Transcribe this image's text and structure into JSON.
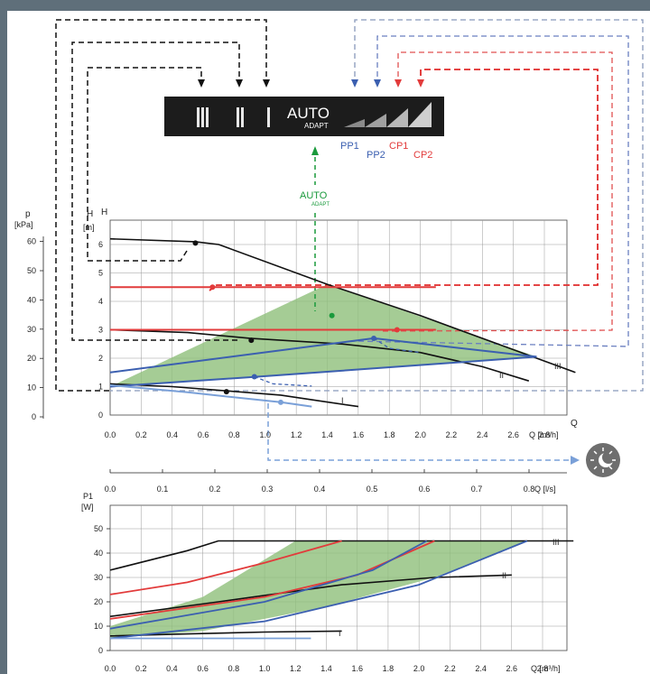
{
  "control_panel": {
    "bars": [
      "III",
      "II",
      "I"
    ],
    "auto": "AUTO",
    "adapt": "ADAPT",
    "mode_labels": [
      "PP1",
      "PP2",
      "CP1",
      "CP2"
    ],
    "mode_colors": [
      "#3b5fb0",
      "#3b5fb0",
      "#e23b3b",
      "#e23b3b"
    ],
    "auto_marker": "AUTO",
    "auto_marker_sub": "ADAPT",
    "night_icon": "moon-night-icon"
  },
  "chart_data": [
    {
      "type": "line",
      "title": "",
      "y_primary_label": [
        "p",
        "[kPa]"
      ],
      "y_secondary_label": [
        "H",
        "H",
        "[m]"
      ],
      "xlabel_m3h": "Q [m³/h]",
      "x_axis_tail_label": "Q",
      "xlabel_ls": "Q [l/s]",
      "x_ticks_m3h": [
        "0.0",
        "0.2",
        "0.4",
        "0.6",
        "0.8",
        "1.0",
        "1.2",
        "1.4",
        "1.6",
        "1.8",
        "2.0",
        "2.2",
        "2.4",
        "2.6",
        "2.8"
      ],
      "x_ticks_ls": [
        "0.0",
        "0.1",
        "0.2",
        "0.3",
        "0.4",
        "0.5",
        "0.6",
        "0.7",
        "0.8"
      ],
      "y_ticks_kpa": [
        "0",
        "10",
        "20",
        "30",
        "40",
        "50",
        "60"
      ],
      "y_ticks_m": [
        "0",
        "1",
        "2",
        "3",
        "4",
        "5",
        "6"
      ],
      "xlim": [
        0,
        3.0
      ],
      "ylim": [
        0,
        6.5
      ],
      "grid": true,
      "shaded_area": [
        [
          0,
          1.0
        ],
        [
          1.4,
          4.6
        ],
        [
          2.75,
          2.05
        ],
        [
          0,
          1.0
        ]
      ],
      "series": [
        {
          "name": "III",
          "color": "#111111",
          "x": [
            0,
            0.55,
            0.7,
            1.4,
            2.0,
            2.5,
            3.0
          ],
          "y": [
            6.2,
            6.1,
            6.0,
            4.6,
            3.5,
            2.5,
            1.5
          ]
        },
        {
          "name": "II",
          "color": "#111111",
          "x": [
            0,
            0.5,
            0.9,
            1.5,
            2.0,
            2.4,
            2.7
          ],
          "y": [
            3.0,
            2.9,
            2.7,
            2.5,
            2.2,
            1.7,
            1.2
          ]
        },
        {
          "name": "I",
          "color": "#111111",
          "x": [
            0,
            0.4,
            0.75,
            1.1,
            1.35,
            1.6
          ],
          "y": [
            1.1,
            1.0,
            0.85,
            0.7,
            0.5,
            0.3
          ]
        },
        {
          "color": "#e23b3b",
          "x": [
            0,
            2.1
          ],
          "y": [
            4.5,
            4.5
          ]
        },
        {
          "color": "#e23b3b",
          "x": [
            0,
            2.1
          ],
          "y": [
            3.0,
            3.0
          ]
        },
        {
          "color": "#3b5fb0",
          "x": [
            0,
            1.7,
            2.75
          ],
          "y": [
            1.5,
            2.7,
            2.05
          ]
        },
        {
          "color": "#3b5fb0",
          "x": [
            0,
            0.95,
            2.75
          ],
          "y": [
            1.0,
            1.35,
            2.05
          ]
        },
        {
          "color": "#7aa0d8",
          "x": [
            0,
            0.5,
            1.1,
            1.3
          ],
          "y": [
            1.05,
            0.8,
            0.45,
            0.3
          ]
        }
      ],
      "points": [
        {
          "x": 0.55,
          "y": 6.05,
          "color": "#111111"
        },
        {
          "x": 0.91,
          "y": 2.63,
          "color": "#111111"
        },
        {
          "x": 0.75,
          "y": 0.82,
          "color": "#111111"
        },
        {
          "x": 0.66,
          "y": 4.5,
          "color": "#e23b3b"
        },
        {
          "x": 1.85,
          "y": 3.0,
          "color": "#e23b3b"
        },
        {
          "x": 1.7,
          "y": 2.7,
          "color": "#3b5fb0"
        },
        {
          "x": 0.93,
          "y": 1.35,
          "color": "#3b5fb0"
        },
        {
          "x": 1.1,
          "y": 0.45,
          "color": "#7aa0d8"
        },
        {
          "x": 1.43,
          "y": 3.5,
          "color": "#1a9a3c"
        }
      ],
      "curve_labels": [
        "III",
        "II",
        "I"
      ]
    },
    {
      "type": "line",
      "title": "",
      "ylabel": [
        "P1",
        "[W]"
      ],
      "xlabel": "Q [m³/h]",
      "x_ticks": [
        "0.0",
        "0.2",
        "0.4",
        "0.6",
        "0.8",
        "1.0",
        "1.2",
        "1.4",
        "1.6",
        "1.8",
        "2.0",
        "2.2",
        "2.4",
        "2.6",
        "2.8"
      ],
      "y_ticks": [
        "0",
        "10",
        "20",
        "30",
        "40",
        "50"
      ],
      "xlim": [
        0,
        3.0
      ],
      "ylim": [
        0,
        55
      ],
      "grid": true,
      "shaded_area": [
        [
          0,
          10
        ],
        [
          0.6,
          22
        ],
        [
          1.2,
          45
        ],
        [
          2.7,
          45
        ],
        [
          2.1,
          30
        ],
        [
          1.4,
          18
        ],
        [
          0.6,
          8
        ],
        [
          0,
          5
        ]
      ],
      "series": [
        {
          "name": "III",
          "color": "#111111",
          "x": [
            0,
            0.5,
            0.7,
            3.0
          ],
          "y": [
            33,
            41,
            45,
            45
          ]
        },
        {
          "name": "II",
          "color": "#111111",
          "x": [
            0,
            0.7,
            1.5,
            2.1,
            2.6
          ],
          "y": [
            14,
            20,
            27,
            30,
            31
          ]
        },
        {
          "name": "I",
          "color": "#111111",
          "x": [
            0,
            0.5,
            1.0,
            1.5
          ],
          "y": [
            6,
            6.8,
            7.6,
            8
          ]
        },
        {
          "color": "#e23b3b",
          "x": [
            0,
            0.5,
            1.0,
            1.5
          ],
          "y": [
            23,
            28,
            36,
            45
          ]
        },
        {
          "color": "#e23b3b",
          "x": [
            0,
            1.0,
            1.6,
            2.1
          ],
          "y": [
            13,
            22,
            31,
            45
          ]
        },
        {
          "color": "#3b5fb0",
          "x": [
            0,
            1.0,
            1.7,
            2.05
          ],
          "y": [
            9,
            20,
            33,
            45
          ]
        },
        {
          "color": "#3b5fb0",
          "x": [
            0,
            1.0,
            2.0,
            2.7
          ],
          "y": [
            5,
            12,
            27,
            45
          ]
        },
        {
          "color": "#7aa0d8",
          "x": [
            0,
            1.3
          ],
          "y": [
            5,
            5
          ]
        }
      ],
      "curve_labels": [
        "III",
        "II",
        "I"
      ]
    }
  ]
}
